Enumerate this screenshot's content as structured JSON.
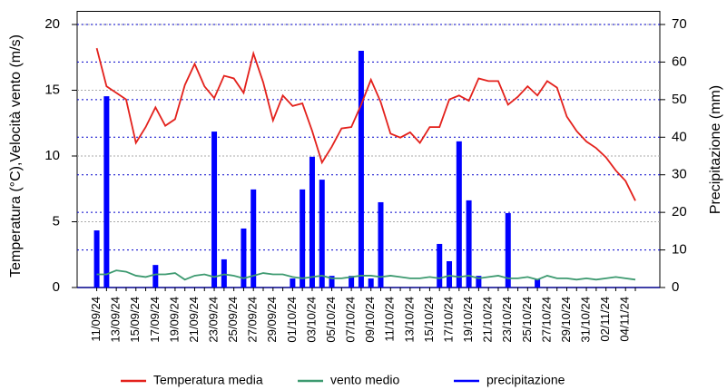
{
  "chart_data": {
    "type": "combo",
    "y_label": "Temperatura (°C),Velocità vento (m/s)",
    "y2_label": "Precipitazione (mm)",
    "categories": [
      "11/09/24",
      null,
      "13/09/24",
      null,
      "15/09/24",
      null,
      "17/09/24",
      null,
      "19/09/24",
      null,
      "21/09/24",
      null,
      "23/09/24",
      null,
      "25/09/24",
      null,
      "27/09/24",
      null,
      "29/09/24",
      null,
      "01/10/24",
      null,
      "03/10/24",
      null,
      "05/10/24",
      null,
      "07/10/24",
      null,
      "09/10/24",
      null,
      "11/10/24",
      null,
      "13/10/24",
      null,
      "15/10/24",
      null,
      "17/10/24",
      null,
      "19/10/24",
      null,
      "21/10/24",
      null,
      "23/10/24",
      null,
      "25/10/24",
      null,
      "27/10/24",
      null,
      "29/10/24",
      null,
      "31/10/24",
      null,
      "02/11/24",
      null,
      "04/11/24",
      null
    ],
    "series": [
      {
        "name": "Temperatura media",
        "type": "line",
        "color": "#e3211c",
        "values": [
          18.2,
          15.3,
          14.8,
          14.3,
          11.0,
          12.2,
          13.7,
          12.3,
          12.8,
          15.4,
          17.0,
          15.3,
          14.4,
          16.1,
          15.9,
          14.8,
          17.8,
          15.6,
          12.7,
          14.6,
          13.8,
          14.0,
          11.9,
          9.5,
          10.7,
          12.1,
          12.2,
          13.9,
          15.8,
          14.1,
          11.7,
          11.4,
          11.8,
          11.0,
          12.2,
          12.2,
          14.3,
          14.6,
          14.2,
          15.9,
          15.7,
          15.7,
          13.9,
          14.5,
          15.3,
          14.6,
          15.7,
          15.2,
          13.0,
          11.9,
          11.1,
          10.6,
          9.9,
          8.9,
          8.1,
          6.6
        ]
      },
      {
        "name": "vento medio",
        "type": "line",
        "color": "#3d9a70",
        "values": [
          1.0,
          1.0,
          1.3,
          1.2,
          0.9,
          0.8,
          1.0,
          1.0,
          1.1,
          0.6,
          0.9,
          1.0,
          0.8,
          1.0,
          0.9,
          0.7,
          0.9,
          1.1,
          1.0,
          1.0,
          0.8,
          0.7,
          0.8,
          0.9,
          0.7,
          0.7,
          0.8,
          0.9,
          0.9,
          0.8,
          0.9,
          0.8,
          0.7,
          0.7,
          0.8,
          0.7,
          0.9,
          0.8,
          0.9,
          0.7,
          0.8,
          0.9,
          0.7,
          0.7,
          0.8,
          0.6,
          0.9,
          0.7,
          0.7,
          0.6,
          0.7,
          0.6,
          0.7,
          0.8,
          0.7,
          0.6
        ]
      },
      {
        "name": "precipitazione",
        "type": "bar",
        "axis": "y2",
        "color": "#0000ff",
        "values": [
          15.2,
          50.9,
          0,
          0,
          0,
          0,
          6.0,
          0,
          0,
          0,
          0,
          0,
          41.5,
          7.5,
          0,
          15.7,
          26.1,
          0,
          0,
          0,
          2.4,
          26.1,
          34.8,
          28.7,
          3.1,
          0,
          3.1,
          63.0,
          2.4,
          22.7,
          0,
          0,
          0,
          0,
          0,
          11.6,
          7.0,
          38.9,
          23.2,
          3.1,
          0,
          0,
          19.8,
          0,
          0,
          2.2,
          0,
          0,
          0,
          0,
          0,
          0,
          0,
          0,
          0,
          0
        ]
      }
    ],
    "ylim": [
      0,
      21
    ],
    "yticks": [
      0,
      5,
      10,
      15,
      20
    ],
    "y2lim": [
      0,
      73.5
    ],
    "y2ticks": [
      0,
      10,
      20,
      30,
      40,
      50,
      60,
      70
    ],
    "grid": true
  }
}
